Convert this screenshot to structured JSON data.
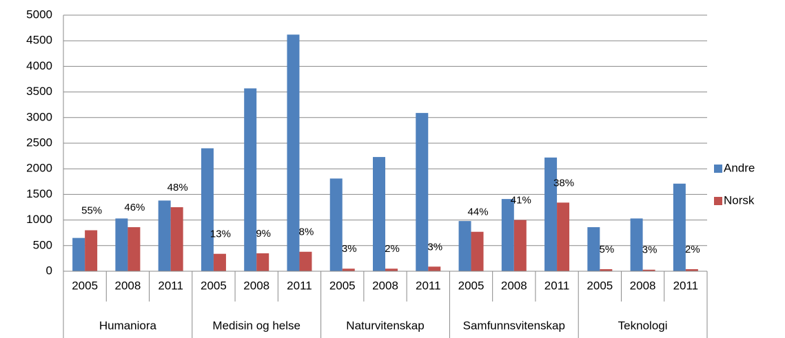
{
  "chart_data": {
    "type": "bar",
    "categories": [
      "2005",
      "2008",
      "2011",
      "2005",
      "2008",
      "2011",
      "2005",
      "2008",
      "2011",
      "2005",
      "2008",
      "2011",
      "2005",
      "2008",
      "2011"
    ],
    "groups": [
      "Humaniora",
      "Medisin og helse",
      "Naturvitenskap",
      "Samfunnsvitenskap",
      "Teknologi"
    ],
    "series": [
      {
        "name": "Andre",
        "color": "#4f81bd",
        "values": [
          650,
          1030,
          1380,
          2400,
          3570,
          4620,
          1810,
          2230,
          3090,
          980,
          1410,
          2220,
          860,
          1030,
          1710
        ]
      },
      {
        "name": "Norsk",
        "color": "#c0504d",
        "values": [
          800,
          860,
          1250,
          340,
          350,
          380,
          50,
          50,
          90,
          770,
          1000,
          1340,
          40,
          30,
          40
        ]
      }
    ],
    "annotations": [
      "55%",
      "46%",
      "48%",
      "13%",
      "9%",
      "8%",
      "3%",
      "2%",
      "3%",
      "44%",
      "41%",
      "38%",
      "5%",
      "3%",
      "2%"
    ],
    "ylim": [
      0,
      5000
    ],
    "yticks": [
      0,
      500,
      1000,
      1500,
      2000,
      2500,
      3000,
      3500,
      4000,
      4500,
      5000
    ],
    "grid": true,
    "legend": "right"
  }
}
